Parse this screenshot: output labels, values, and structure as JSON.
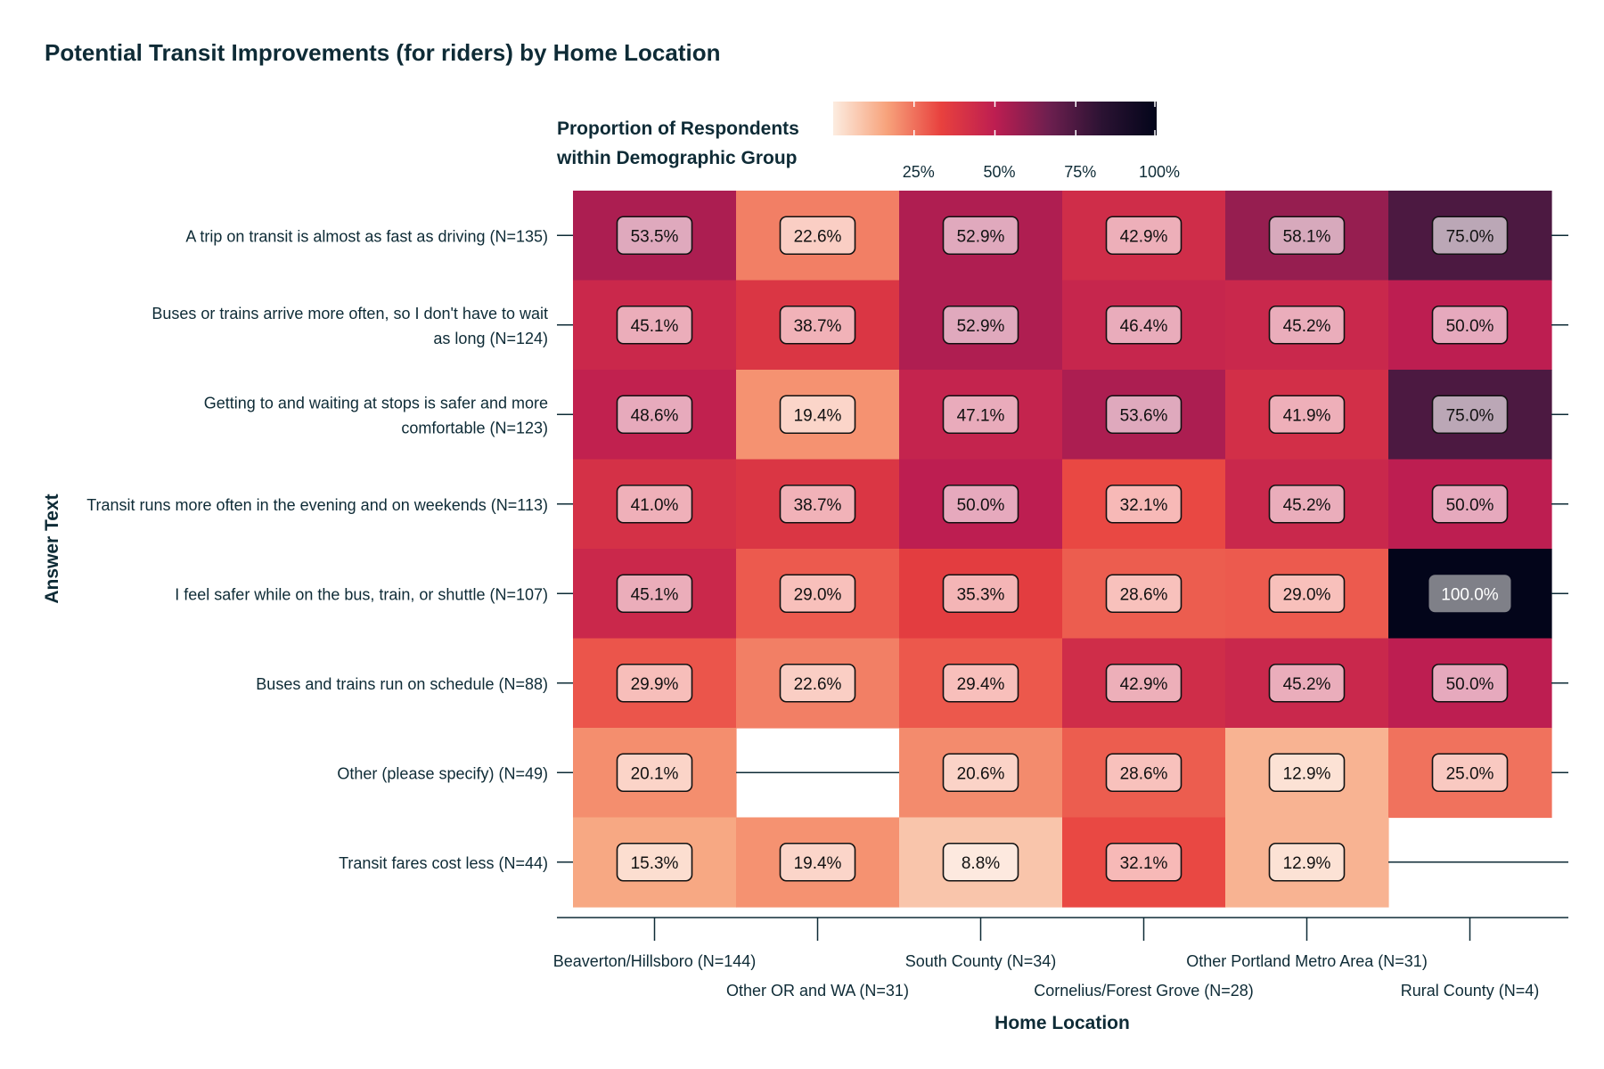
{
  "chart_data": {
    "type": "heatmap",
    "title": "Potential Transit Improvements (for riders) by Home Location",
    "xlabel": "Home Location",
    "ylabel": "Answer Text",
    "legend": {
      "title_lines": [
        "Proportion of Respondents",
        "within Demographic Group"
      ],
      "ticks": [
        "25%",
        "50%",
        "75%",
        "100%"
      ],
      "range": [
        0,
        100
      ],
      "colors": [
        "#fcece0",
        "#f7a27b",
        "#e8413e",
        "#bd1e51",
        "#6d1f4f",
        "#2a1232",
        "#03051a"
      ]
    },
    "columns": [
      "Beaverton/Hillsboro (N=144)",
      "Other OR and WA (N=31)",
      "South County (N=34)",
      "Cornelius/Forest Grove (N=28)",
      "Other Portland Metro Area (N=31)",
      "Rural County (N=4)"
    ],
    "rows": [
      {
        "label": [
          "A trip on transit is almost as fast as driving (N=135)"
        ],
        "values": [
          53.5,
          22.6,
          52.9,
          42.9,
          58.1,
          75.0
        ],
        "labels": [
          "53.5%",
          "22.6%",
          "52.9%",
          "42.9%",
          "58.1%",
          "75.0%"
        ]
      },
      {
        "label": [
          "Buses or trains arrive more often, so I don't have to wait",
          "as long (N=124)"
        ],
        "values": [
          45.1,
          38.7,
          52.9,
          46.4,
          45.2,
          50.0
        ],
        "labels": [
          "45.1%",
          "38.7%",
          "52.9%",
          "46.4%",
          "45.2%",
          "50.0%"
        ]
      },
      {
        "label": [
          "Getting to and waiting at stops is safer and more",
          "comfortable (N=123)"
        ],
        "values": [
          48.6,
          19.4,
          47.1,
          53.6,
          41.9,
          75.0
        ],
        "labels": [
          "48.6%",
          "19.4%",
          "47.1%",
          "53.6%",
          "41.9%",
          "75.0%"
        ]
      },
      {
        "label": [
          "Transit runs more often in the evening and on weekends (N=113)"
        ],
        "values": [
          41.0,
          38.7,
          50.0,
          32.1,
          45.2,
          50.0
        ],
        "labels": [
          "41.0%",
          "38.7%",
          "50.0%",
          "32.1%",
          "45.2%",
          "50.0%"
        ]
      },
      {
        "label": [
          "I feel safer while on the bus, train, or shuttle (N=107)"
        ],
        "values": [
          45.1,
          29.0,
          35.3,
          28.6,
          29.0,
          100.0
        ],
        "labels": [
          "45.1%",
          "29.0%",
          "35.3%",
          "28.6%",
          "29.0%",
          "100.0%"
        ]
      },
      {
        "label": [
          "Buses and trains run on schedule (N=88)"
        ],
        "values": [
          29.9,
          22.6,
          29.4,
          42.9,
          45.2,
          50.0
        ],
        "labels": [
          "29.9%",
          "22.6%",
          "29.4%",
          "42.9%",
          "45.2%",
          "50.0%"
        ]
      },
      {
        "label": [
          "Other (please specify) (N=49)"
        ],
        "values": [
          20.1,
          null,
          20.6,
          28.6,
          12.9,
          25.0
        ],
        "labels": [
          "20.1%",
          "",
          "20.6%",
          "28.6%",
          "12.9%",
          "25.0%"
        ]
      },
      {
        "label": [
          "Transit fares cost less (N=44)"
        ],
        "values": [
          15.3,
          19.4,
          8.8,
          32.1,
          12.9,
          null
        ],
        "labels": [
          "15.3%",
          "19.4%",
          "8.8%",
          "32.1%",
          "12.9%",
          ""
        ]
      }
    ]
  }
}
